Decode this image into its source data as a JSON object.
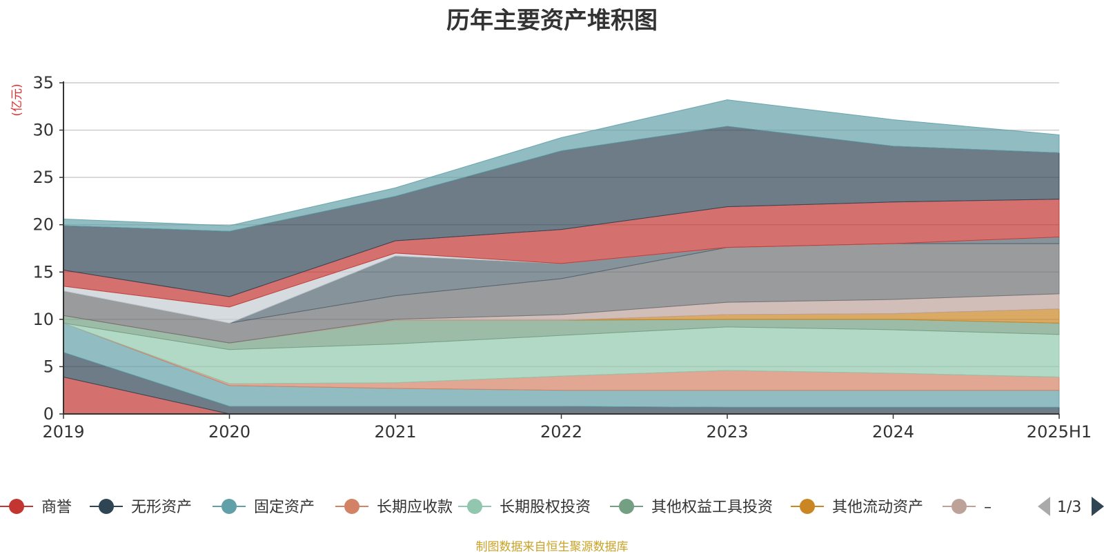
{
  "chart_data": {
    "type": "area",
    "stacked": true,
    "title": "历年主要资产堆积图",
    "ylabel": "(亿元)",
    "ylim": [
      0,
      35
    ],
    "yticks": [
      0,
      5,
      10,
      15,
      20,
      25,
      30,
      35
    ],
    "grid": true,
    "x": [
      "2019",
      "2020",
      "2021",
      "2022",
      "2023",
      "2024",
      "2025H1"
    ],
    "series": [
      {
        "name": "商誉",
        "color": "#c23531",
        "values": [
          3.9,
          0.0,
          0.0,
          0.0,
          0.0,
          0.0,
          0.0
        ]
      },
      {
        "name": "无形资产",
        "color": "#2f4554",
        "values": [
          2.6,
          0.8,
          0.8,
          0.8,
          0.7,
          0.7,
          0.7
        ]
      },
      {
        "name": "固定资产",
        "color": "#61a0a8",
        "values": [
          3.1,
          2.2,
          1.9,
          1.7,
          1.8,
          1.8,
          1.8
        ]
      },
      {
        "name": "长期应收款",
        "color": "#d48265",
        "values": [
          0.0,
          0.2,
          0.6,
          1.5,
          2.1,
          1.8,
          1.4
        ]
      },
      {
        "name": "长期股权投资",
        "color": "#91c7ae",
        "values": [
          0.0,
          3.6,
          4.1,
          4.3,
          4.6,
          4.6,
          4.5
        ]
      },
      {
        "name": "其他权益工具投资",
        "color": "#749f83",
        "values": [
          0.8,
          0.7,
          2.5,
          1.6,
          0.8,
          1.1,
          1.2
        ]
      },
      {
        "name": "其他流动资产",
        "color": "#ca8622",
        "values": [
          0.0,
          0.0,
          0.0,
          0.0,
          0.5,
          0.6,
          1.5
        ]
      },
      {
        "name": "–",
        "color": "#bda29a",
        "values": [
          0.0,
          0.0,
          0.1,
          0.6,
          1.3,
          1.5,
          1.6
        ]
      },
      {
        "name": "",
        "color": "#6e7074",
        "values": [
          2.6,
          2.1,
          2.5,
          3.8,
          5.8,
          5.9,
          5.3
        ]
      },
      {
        "name": "",
        "color": "#546570",
        "values": [
          0.0,
          0.0,
          4.2,
          1.6,
          0.0,
          0.0,
          0.7
        ]
      },
      {
        "name": "",
        "color": "#c4ccd3",
        "values": [
          0.5,
          1.7,
          0.3,
          0.0,
          0.0,
          0.0,
          0.0
        ]
      },
      {
        "name": "",
        "color": "#c23531",
        "values": [
          1.7,
          1.1,
          1.3,
          3.6,
          4.3,
          4.4,
          4.0
        ]
      },
      {
        "name": "",
        "color": "#2f4554",
        "values": [
          4.7,
          6.9,
          4.7,
          8.3,
          8.5,
          5.9,
          4.9
        ]
      },
      {
        "name": "",
        "color": "#61a0a8",
        "values": [
          0.7,
          0.6,
          0.9,
          1.4,
          2.8,
          2.8,
          1.9
        ]
      }
    ],
    "legend": {
      "position": "bottom",
      "visible_count": 8,
      "page_text": "1/3"
    }
  },
  "source_note": "制图数据来自恒生聚源数据库"
}
